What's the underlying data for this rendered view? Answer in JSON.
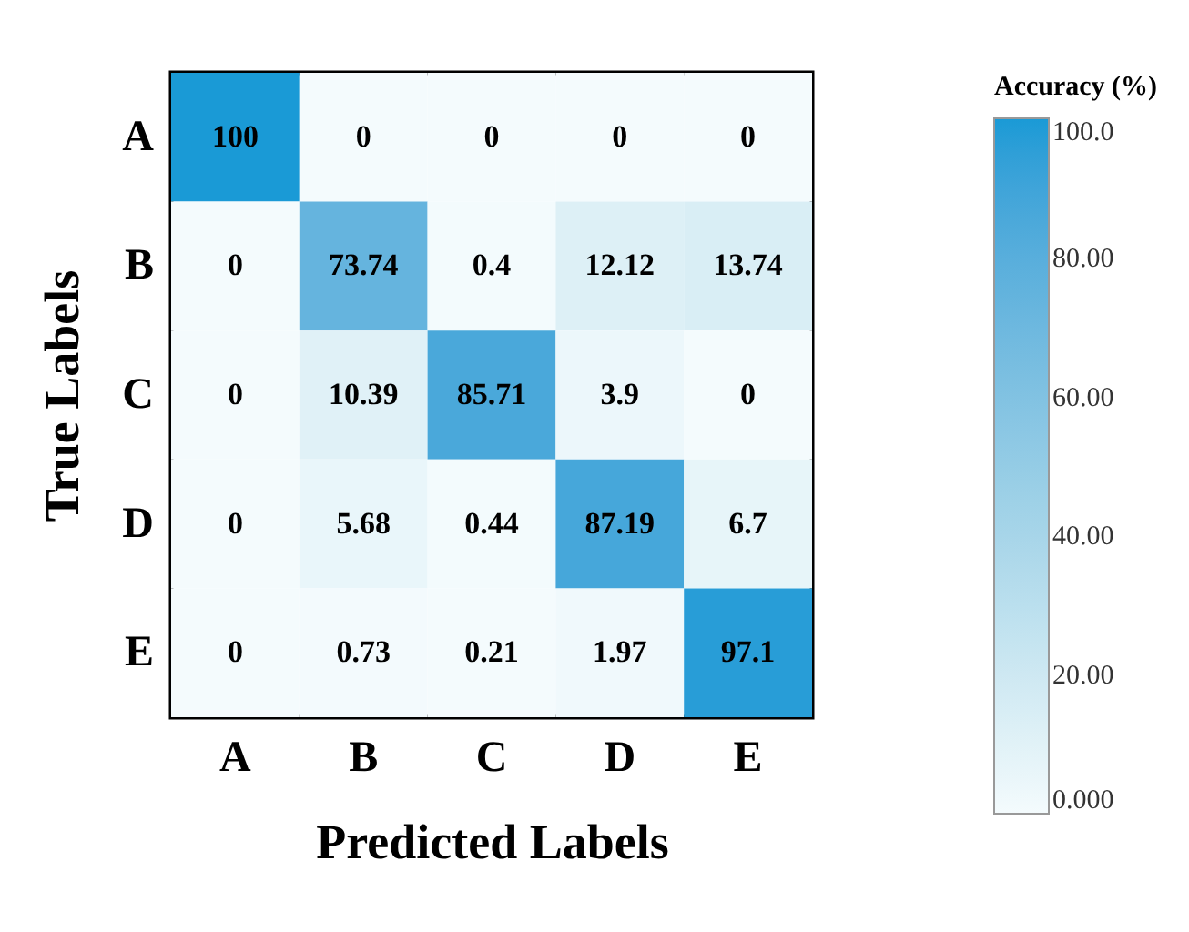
{
  "chart_data": {
    "type": "heatmap",
    "xlabel": "Predicted Labels",
    "ylabel": "True Labels",
    "legend_title": "Accuracy (%)",
    "categories": [
      "A",
      "B",
      "C",
      "D",
      "E"
    ],
    "y_categories": [
      "A",
      "B",
      "C",
      "D",
      "E"
    ],
    "cells": [
      [
        100,
        0,
        0,
        0,
        0
      ],
      [
        0,
        73.74,
        0.4,
        12.12,
        13.74
      ],
      [
        0,
        10.39,
        85.71,
        3.9,
        0
      ],
      [
        0,
        5.68,
        0.44,
        87.19,
        6.7
      ],
      [
        0,
        0.73,
        0.21,
        1.97,
        97.1
      ]
    ],
    "clim": [
      0,
      100
    ],
    "cticks": [
      {
        "value": 0,
        "label": "0.000"
      },
      {
        "value": 20,
        "label": "20.00"
      },
      {
        "value": 40,
        "label": "40.00"
      },
      {
        "value": 60,
        "label": "60.00"
      },
      {
        "value": 80,
        "label": "80.00"
      },
      {
        "value": 100,
        "label": "100.0"
      }
    ],
    "data_labels": true
  }
}
